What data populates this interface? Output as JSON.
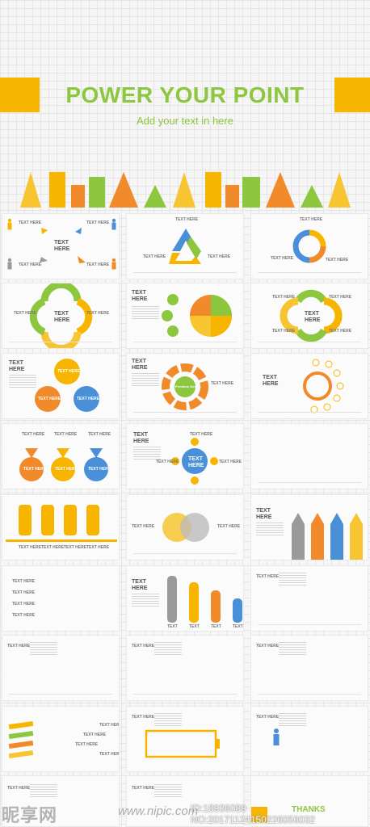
{
  "hero": {
    "title": "POWER YOUR POINT",
    "subtitle": "Add your text in here"
  },
  "text_here": "TEXT HERE",
  "text_here_split": [
    "TEXT",
    "HERE"
  ],
  "text_short": "TEXT",
  "cycle_label": "Premium Design",
  "thanks": "THANKS",
  "watermark": {
    "logo": "昵享网",
    "site": "www.nipic.com",
    "id": "ID:18936089 NO:20171124150226056032"
  },
  "colors": {
    "yellow": "#f7b500",
    "orange": "#f08a2b",
    "green": "#8dc63f",
    "blue": "#4a90d9",
    "gray": "#9a9a9a"
  }
}
